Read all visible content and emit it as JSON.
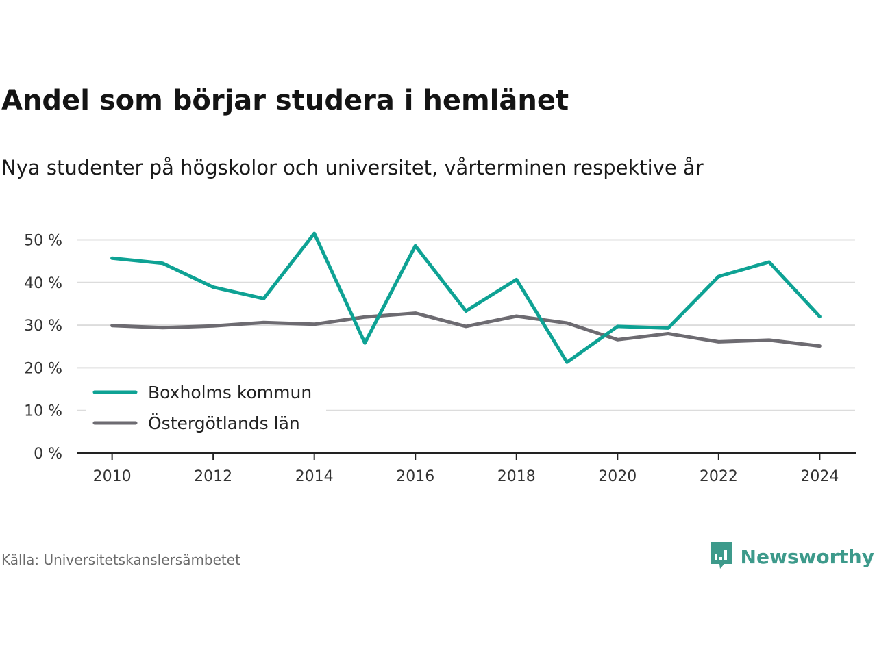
{
  "chart_data": {
    "type": "line",
    "title": "Andel som börjar studera i hemlänet",
    "subtitle": "Nya studenter på högskolor och universitet, vårterminen respektive år",
    "x": [
      2010,
      2011,
      2012,
      2013,
      2014,
      2015,
      2016,
      2017,
      2018,
      2019,
      2020,
      2021,
      2022,
      2023,
      2024
    ],
    "x_ticks": [
      "2010",
      "2012",
      "2014",
      "2016",
      "2018",
      "2020",
      "2022",
      "2024"
    ],
    "y_ticks": [
      "0 %",
      "10 %",
      "20 %",
      "30 %",
      "40 %",
      "50 %"
    ],
    "y_tick_values": [
      0,
      10,
      20,
      30,
      40,
      50
    ],
    "ylim": [
      0,
      52
    ],
    "xlim": [
      2009.3,
      2024.7
    ],
    "grid": true,
    "legend_position": "lower-left",
    "series": [
      {
        "name": "Boxholms kommun",
        "color": "#0ea294",
        "values": [
          45.7,
          44.5,
          38.9,
          36.2,
          51.5,
          25.8,
          48.6,
          33.3,
          40.7,
          21.3,
          29.7,
          29.3,
          41.4,
          44.8,
          32.0
        ]
      },
      {
        "name": "Östergötlands län",
        "color": "#6d6b71",
        "values": [
          29.9,
          29.4,
          29.8,
          30.6,
          30.2,
          31.9,
          32.8,
          29.7,
          32.1,
          30.5,
          26.6,
          28.0,
          26.1,
          26.5,
          25.1
        ]
      }
    ],
    "source": "Källa: Universitetskanslersämbetet"
  },
  "brand": {
    "name": "Newsworthy",
    "color": "#3d9a8b",
    "logo_icon": "bar-chart-speech-bubble-icon"
  }
}
